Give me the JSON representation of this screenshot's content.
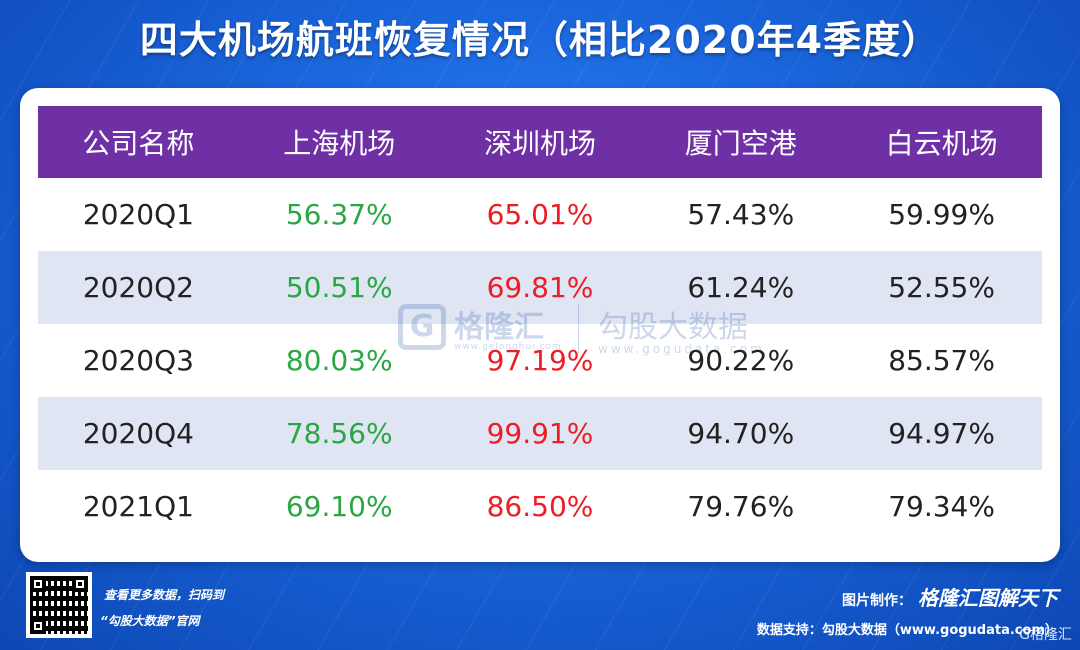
{
  "title": "四大机场航班恢复情况（相比2020年4季度）",
  "colors": {
    "background": "#1a66dc",
    "header": "#6f2fa5",
    "row_alt": "#dfe5f2",
    "shanghai_text": "#2aa744",
    "shenzhen_text": "#ee1c25",
    "default_text": "#222222"
  },
  "chart_data": {
    "type": "table",
    "title": "四大机场航班恢复情况（相比2020年4季度）",
    "columns": [
      "公司名称",
      "上海机场",
      "深圳机场",
      "厦门空港",
      "白云机场"
    ],
    "rows": [
      [
        "2020Q1",
        "56.37%",
        "65.01%",
        "57.43%",
        "59.99%"
      ],
      [
        "2020Q2",
        "50.51%",
        "69.81%",
        "61.24%",
        "52.55%"
      ],
      [
        "2020Q3",
        "80.03%",
        "97.19%",
        "90.22%",
        "85.57%"
      ],
      [
        "2020Q4",
        "78.56%",
        "99.91%",
        "94.70%",
        "94.97%"
      ],
      [
        "2021Q1",
        "69.10%",
        "86.50%",
        "79.76%",
        "79.34%"
      ]
    ]
  },
  "watermark": {
    "logo_glyph": "G",
    "brand": "格隆汇",
    "brand_url": "www.gelonghui.com",
    "partner": "勾股大数据",
    "partner_url": "www.gogudata.com"
  },
  "footer": {
    "line1": "查看更多数据，扫码到",
    "line2": "“勾股大数据”官网",
    "made_by_label": "图片制作：",
    "made_by_brand": "格隆汇图解天下",
    "source": "数据支持：勾股大数据（www.gogudata.com）",
    "corner_logo": "G格隆汇"
  }
}
